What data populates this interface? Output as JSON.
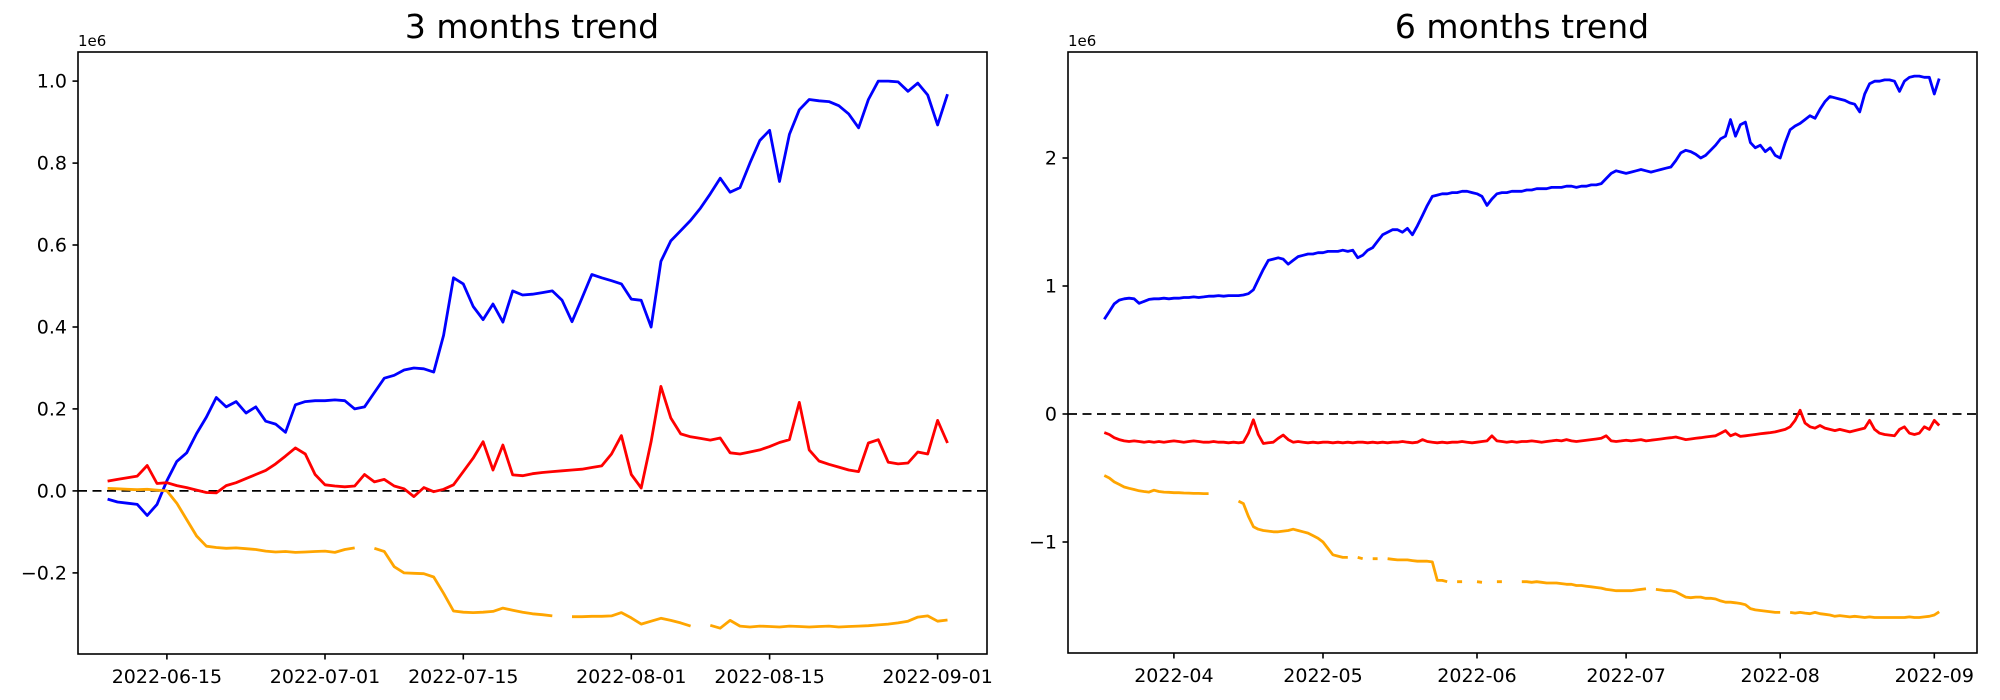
{
  "figure": {
    "background": "#ffffff",
    "axis_color": "#000000",
    "zero_line_color": "#000000"
  },
  "chart_data": [
    {
      "type": "line",
      "title": "3 months trend",
      "y_offset_label": "1e6",
      "unit_scale": 1000000,
      "grid": false,
      "legend": "none",
      "zero_line": true,
      "xlim_days": [
        157.0,
        249.0
      ],
      "ylim": [
        -0.398,
        1.071
      ],
      "x_tick_days": [
        166,
        182,
        196,
        213,
        227,
        244
      ],
      "x_tick_labels": [
        "2022-06-15",
        "2022-07-01",
        "2022-07-15",
        "2022-08-01",
        "2022-08-15",
        "2022-09-01"
      ],
      "y_tick_values": [
        1.0,
        0.8,
        0.6,
        0.4,
        0.2,
        0.0,
        -0.2
      ],
      "y_tick_labels": [
        "1.0",
        "0.8",
        "0.6",
        "0.4",
        "0.2",
        "0.0",
        "−0.2"
      ],
      "series": [
        {
          "name": "blue-series",
          "color": "#0000ff",
          "x_start_day": 160,
          "values": [
            -0.02,
            -0.027,
            -0.03,
            -0.033,
            -0.06,
            -0.033,
            0.025,
            0.072,
            0.093,
            0.14,
            0.18,
            0.228,
            0.205,
            0.218,
            0.19,
            0.205,
            0.17,
            0.163,
            0.143,
            0.21,
            0.218,
            0.22,
            0.22,
            0.222,
            0.22,
            0.2,
            0.205,
            0.24,
            0.275,
            0.282,
            0.295,
            0.3,
            0.298,
            0.29,
            0.38,
            0.52,
            0.505,
            0.45,
            0.418,
            0.456,
            0.412,
            0.488,
            0.478,
            0.48,
            0.484,
            0.488,
            0.465,
            0.413,
            0.47,
            0.528,
            0.52,
            0.513,
            0.505,
            0.468,
            0.465,
            0.4,
            0.56,
            0.61,
            0.635,
            0.66,
            0.69,
            0.725,
            0.763,
            0.729,
            0.74,
            0.8,
            0.855,
            0.88,
            0.755,
            0.87,
            0.93,
            0.955,
            0.952,
            0.95,
            0.94,
            0.92,
            0.886,
            0.955,
            1.0,
            1.0,
            0.998,
            0.975,
            0.995,
            0.966,
            0.893,
            0.968
          ]
        },
        {
          "name": "red-series",
          "color": "#ff0000",
          "x_start_day": 160,
          "values": [
            0.024,
            0.028,
            0.032,
            0.036,
            0.062,
            0.018,
            0.02,
            0.013,
            0.008,
            0.002,
            -0.004,
            -0.005,
            0.013,
            0.02,
            0.03,
            0.04,
            0.05,
            0.066,
            0.085,
            0.105,
            0.09,
            0.04,
            0.015,
            0.012,
            0.01,
            0.012,
            0.04,
            0.022,
            0.028,
            0.012,
            0.005,
            -0.014,
            0.008,
            -0.002,
            0.004,
            0.015,
            0.047,
            0.08,
            0.12,
            0.051,
            0.112,
            0.039,
            0.037,
            0.042,
            0.045,
            0.047,
            0.049,
            0.051,
            0.053,
            0.057,
            0.061,
            0.09,
            0.135,
            0.04,
            0.007,
            0.12,
            0.255,
            0.178,
            0.139,
            0.132,
            0.128,
            0.124,
            0.129,
            0.093,
            0.09,
            0.095,
            0.1,
            0.108,
            0.118,
            0.125,
            0.216,
            0.1,
            0.073,
            0.065,
            0.058,
            0.051,
            0.047,
            0.117,
            0.125,
            0.07,
            0.066,
            0.068,
            0.095,
            0.09,
            0.172,
            0.117
          ]
        },
        {
          "name": "orange-series",
          "color": "#ffa500",
          "x_start_day": 160,
          "values": [
            0.006,
            0.005,
            0.004,
            0.003,
            0.004,
            0.002,
            0.0,
            -0.03,
            -0.07,
            -0.11,
            -0.135,
            -0.138,
            -0.14,
            -0.139,
            -0.141,
            -0.143,
            -0.147,
            -0.149,
            -0.148,
            -0.15,
            -0.149,
            -0.148,
            -0.147,
            -0.15,
            -0.143,
            -0.139,
            null,
            -0.14,
            -0.148,
            -0.185,
            -0.2,
            -0.201,
            -0.202,
            -0.21,
            -0.25,
            -0.293,
            -0.296,
            -0.297,
            -0.296,
            -0.294,
            -0.286,
            -0.291,
            -0.296,
            -0.3,
            -0.302,
            -0.305,
            null,
            -0.307,
            -0.307,
            -0.306,
            -0.306,
            -0.305,
            -0.297,
            -0.31,
            -0.325,
            -0.318,
            -0.311,
            -0.316,
            -0.322,
            -0.33,
            null,
            -0.328,
            -0.335,
            -0.316,
            -0.33,
            -0.332,
            -0.33,
            -0.331,
            -0.332,
            -0.33,
            -0.331,
            -0.332,
            -0.331,
            -0.33,
            -0.332,
            -0.331,
            -0.33,
            -0.329,
            -0.327,
            -0.325,
            -0.322,
            -0.318,
            -0.308,
            -0.305,
            -0.318,
            -0.315
          ]
        }
      ]
    },
    {
      "type": "line",
      "title": "6 months trend",
      "y_offset_label": "1e6",
      "unit_scale": 1000000,
      "grid": false,
      "legend": "none",
      "zero_line": true,
      "xlim_days": [
        69.7,
        252.6
      ],
      "ylim": [
        -1.867,
        2.828
      ],
      "x_tick_days": [
        91,
        121,
        152,
        182,
        213,
        244
      ],
      "x_tick_labels": [
        "2022-04",
        "2022-05",
        "2022-06",
        "2022-07",
        "2022-08",
        "2022-09"
      ],
      "y_tick_values": [
        2,
        1,
        0,
        -1
      ],
      "y_tick_labels": [
        "2",
        "1",
        "0",
        "−1"
      ],
      "series": [
        {
          "name": "blue-series",
          "color": "#0000ff",
          "x_start_day": 77,
          "values": [
            0.74,
            0.8,
            0.86,
            0.89,
            0.9,
            0.905,
            0.9,
            0.865,
            0.88,
            0.895,
            0.9,
            0.9,
            0.905,
            0.9,
            0.905,
            0.905,
            0.91,
            0.91,
            0.915,
            0.91,
            0.915,
            0.92,
            0.92,
            0.925,
            0.92,
            0.925,
            0.925,
            0.925,
            0.93,
            0.94,
            0.97,
            1.05,
            1.13,
            1.2,
            1.21,
            1.22,
            1.21,
            1.17,
            1.2,
            1.23,
            1.24,
            1.25,
            1.25,
            1.26,
            1.26,
            1.27,
            1.27,
            1.27,
            1.28,
            1.27,
            1.28,
            1.22,
            1.24,
            1.28,
            1.3,
            1.35,
            1.4,
            1.42,
            1.44,
            1.44,
            1.42,
            1.45,
            1.4,
            1.47,
            1.55,
            1.63,
            1.7,
            1.71,
            1.72,
            1.72,
            1.73,
            1.73,
            1.74,
            1.74,
            1.73,
            1.72,
            1.7,
            1.63,
            1.68,
            1.72,
            1.73,
            1.73,
            1.74,
            1.74,
            1.74,
            1.75,
            1.75,
            1.76,
            1.76,
            1.76,
            1.77,
            1.77,
            1.77,
            1.78,
            1.78,
            1.77,
            1.78,
            1.78,
            1.79,
            1.79,
            1.8,
            1.84,
            1.88,
            1.9,
            1.89,
            1.88,
            1.89,
            1.9,
            1.91,
            1.9,
            1.89,
            1.9,
            1.91,
            1.92,
            1.93,
            1.98,
            2.04,
            2.06,
            2.05,
            2.03,
            2.0,
            2.02,
            2.06,
            2.1,
            2.15,
            2.17,
            2.3,
            2.17,
            2.26,
            2.28,
            2.12,
            2.08,
            2.1,
            2.05,
            2.08,
            2.02,
            2.0,
            2.12,
            2.22,
            2.25,
            2.27,
            2.3,
            2.33,
            2.31,
            2.38,
            2.44,
            2.48,
            2.47,
            2.46,
            2.45,
            2.43,
            2.42,
            2.36,
            2.5,
            2.58,
            2.6,
            2.6,
            2.61,
            2.61,
            2.6,
            2.52,
            2.6,
            2.63,
            2.64,
            2.64,
            2.63,
            2.63,
            2.5,
            2.62
          ]
        },
        {
          "name": "red-series",
          "color": "#ff0000",
          "x_start_day": 77,
          "values": [
            -0.145,
            -0.16,
            -0.185,
            -0.2,
            -0.21,
            -0.215,
            -0.21,
            -0.215,
            -0.22,
            -0.215,
            -0.22,
            -0.215,
            -0.22,
            -0.215,
            -0.21,
            -0.215,
            -0.22,
            -0.215,
            -0.21,
            -0.215,
            -0.22,
            -0.22,
            -0.215,
            -0.22,
            -0.22,
            -0.225,
            -0.22,
            -0.225,
            -0.22,
            -0.15,
            -0.045,
            -0.16,
            -0.23,
            -0.225,
            -0.22,
            -0.19,
            -0.165,
            -0.2,
            -0.22,
            -0.215,
            -0.22,
            -0.225,
            -0.22,
            -0.225,
            -0.22,
            -0.22,
            -0.225,
            -0.22,
            -0.225,
            -0.22,
            -0.225,
            -0.22,
            -0.22,
            -0.225,
            -0.22,
            -0.225,
            -0.22,
            -0.225,
            -0.22,
            -0.22,
            -0.215,
            -0.22,
            -0.225,
            -0.22,
            -0.2,
            -0.215,
            -0.22,
            -0.225,
            -0.22,
            -0.225,
            -0.22,
            -0.22,
            -0.215,
            -0.22,
            -0.225,
            -0.22,
            -0.215,
            -0.21,
            -0.17,
            -0.21,
            -0.215,
            -0.22,
            -0.215,
            -0.22,
            -0.215,
            -0.215,
            -0.21,
            -0.215,
            -0.22,
            -0.215,
            -0.21,
            -0.205,
            -0.21,
            -0.2,
            -0.21,
            -0.215,
            -0.21,
            -0.205,
            -0.2,
            -0.195,
            -0.19,
            -0.17,
            -0.21,
            -0.215,
            -0.21,
            -0.205,
            -0.21,
            -0.205,
            -0.2,
            -0.21,
            -0.205,
            -0.2,
            -0.195,
            -0.19,
            -0.185,
            -0.18,
            -0.19,
            -0.2,
            -0.195,
            -0.19,
            -0.185,
            -0.18,
            -0.175,
            -0.17,
            -0.15,
            -0.13,
            -0.17,
            -0.155,
            -0.175,
            -0.17,
            -0.165,
            -0.16,
            -0.155,
            -0.15,
            -0.145,
            -0.14,
            -0.13,
            -0.12,
            -0.1,
            -0.05,
            0.03,
            -0.07,
            -0.1,
            -0.11,
            -0.09,
            -0.11,
            -0.12,
            -0.13,
            -0.12,
            -0.13,
            -0.14,
            -0.13,
            -0.12,
            -0.11,
            -0.05,
            -0.12,
            -0.15,
            -0.16,
            -0.165,
            -0.17,
            -0.12,
            -0.1,
            -0.15,
            -0.16,
            -0.15,
            -0.1,
            -0.12,
            -0.05,
            -0.09
          ]
        },
        {
          "name": "orange-series",
          "color": "#ffa500",
          "x_start_day": 77,
          "values": [
            -0.48,
            -0.5,
            -0.53,
            -0.55,
            -0.57,
            -0.58,
            -0.59,
            -0.6,
            -0.605,
            -0.61,
            -0.595,
            -0.605,
            -0.61,
            -0.612,
            -0.615,
            -0.615,
            -0.617,
            -0.618,
            -0.62,
            -0.62,
            -0.622,
            -0.622,
            null,
            null,
            null,
            null,
            null,
            -0.68,
            -0.7,
            -0.8,
            -0.88,
            -0.9,
            -0.91,
            -0.915,
            -0.92,
            -0.92,
            -0.915,
            -0.91,
            -0.9,
            -0.91,
            -0.92,
            -0.93,
            -0.95,
            -0.97,
            -1.0,
            -1.05,
            -1.1,
            -1.11,
            -1.12,
            -1.12,
            null,
            -1.12,
            -1.13,
            null,
            -1.13,
            -1.13,
            null,
            -1.13,
            -1.135,
            -1.14,
            -1.14,
            -1.14,
            -1.145,
            -1.15,
            -1.15,
            -1.15,
            -1.155,
            -1.3,
            -1.3,
            -1.31,
            null,
            -1.31,
            -1.31,
            null,
            null,
            -1.31,
            -1.315,
            null,
            null,
            -1.31,
            -1.31,
            null,
            null,
            null,
            -1.31,
            -1.31,
            -1.315,
            -1.31,
            -1.315,
            -1.32,
            -1.32,
            -1.32,
            -1.325,
            -1.33,
            -1.33,
            -1.34,
            -1.34,
            -1.345,
            -1.35,
            -1.355,
            -1.36,
            -1.37,
            -1.375,
            -1.38,
            -1.38,
            -1.38,
            -1.38,
            -1.375,
            -1.37,
            -1.365,
            null,
            -1.37,
            -1.375,
            -1.38,
            -1.38,
            -1.39,
            -1.41,
            -1.43,
            -1.435,
            -1.43,
            -1.43,
            -1.44,
            -1.44,
            -1.445,
            -1.46,
            -1.47,
            -1.47,
            -1.475,
            -1.48,
            -1.49,
            -1.52,
            -1.53,
            -1.535,
            -1.54,
            -1.545,
            -1.55,
            -1.55,
            null,
            -1.55,
            -1.555,
            -1.55,
            -1.555,
            -1.56,
            -1.55,
            -1.56,
            -1.565,
            -1.57,
            -1.58,
            -1.575,
            -1.58,
            -1.585,
            -1.58,
            -1.585,
            -1.59,
            -1.585,
            -1.59,
            -1.59,
            -1.59,
            -1.59,
            -1.59,
            -1.59,
            -1.59,
            -1.585,
            -1.59,
            -1.59,
            -1.585,
            -1.58,
            -1.57,
            -1.545
          ]
        }
      ]
    }
  ]
}
